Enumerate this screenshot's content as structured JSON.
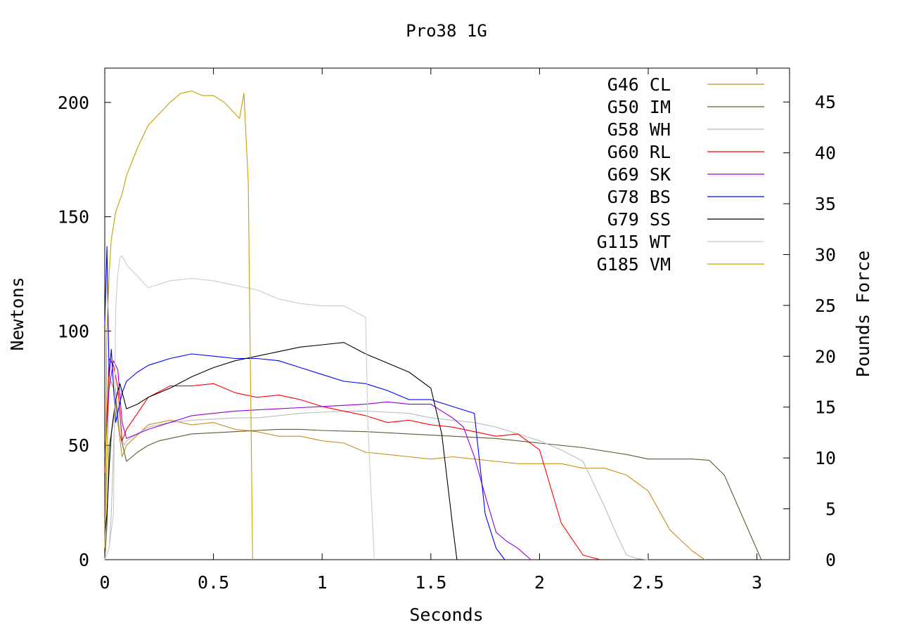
{
  "chart_data": {
    "type": "line",
    "title": "Pro38 1G",
    "xlabel": "Seconds",
    "ylabel": "Newtons",
    "y2label": "Pounds Force",
    "xlim": [
      0,
      3.15
    ],
    "ylim": [
      0,
      215
    ],
    "y2lim": [
      0,
      48.33
    ],
    "xticks": [
      "0",
      "0.5",
      "1",
      "1.5",
      "2",
      "2.5",
      "3"
    ],
    "yticks": [
      "0",
      "50",
      "100",
      "150",
      "200"
    ],
    "y2ticks": [
      "0",
      "5",
      "10",
      "15",
      "20",
      "25",
      "30",
      "35",
      "40",
      "45"
    ],
    "grid": false,
    "legend_position": "top-right",
    "series": [
      {
        "name": "G46 CL",
        "color": "#c8901c",
        "x": [
          0.0,
          0.02,
          0.04,
          0.06,
          0.08,
          0.1,
          0.2,
          0.3,
          0.4,
          0.5,
          0.6,
          0.7,
          0.8,
          0.9,
          1.0,
          1.1,
          1.2,
          1.3,
          1.4,
          1.5,
          1.6,
          1.7,
          1.8,
          1.9,
          2.0,
          2.1,
          2.2,
          2.3,
          2.4,
          2.5,
          2.6,
          2.7,
          2.76
        ],
        "y": [
          5,
          80,
          75,
          60,
          45,
          50,
          59,
          61,
          59,
          60,
          57,
          56,
          54,
          54,
          52,
          51,
          47,
          46,
          45,
          44,
          45,
          44,
          43,
          42,
          42,
          42,
          40,
          40,
          37,
          30,
          13,
          4,
          0
        ]
      },
      {
        "name": "G50 IM",
        "color": "#5e5a30",
        "x": [
          0.0,
          0.01,
          0.02,
          0.03,
          0.05,
          0.07,
          0.1,
          0.15,
          0.2,
          0.25,
          0.3,
          0.4,
          0.5,
          0.6,
          0.7,
          0.8,
          0.9,
          1.0,
          1.2,
          1.4,
          1.6,
          1.8,
          2.0,
          2.2,
          2.4,
          2.5,
          2.6,
          2.7,
          2.78,
          2.85,
          3.02
        ],
        "y": [
          0,
          15,
          50,
          55,
          70,
          55,
          43,
          47,
          50,
          52,
          53,
          55,
          55.5,
          56,
          56.5,
          57,
          57,
          56.5,
          56,
          55,
          54,
          53,
          51,
          49,
          46,
          44,
          44,
          44,
          43.5,
          37,
          0
        ]
      },
      {
        "name": "G58 WH",
        "color": "#bbbbbb",
        "x": [
          0.0,
          0.02,
          0.03,
          0.05,
          0.07,
          0.09,
          0.1,
          0.15,
          0.2,
          0.3,
          0.4,
          0.5,
          0.6,
          0.7,
          0.8,
          0.9,
          1.0,
          1.1,
          1.2,
          1.3,
          1.4,
          1.5,
          1.6,
          1.7,
          1.8,
          1.9,
          2.0,
          2.1,
          2.2,
          2.3,
          2.35,
          2.4,
          2.45,
          2.5
        ],
        "y": [
          0,
          5,
          20,
          75,
          55,
          50,
          52,
          55,
          58,
          60,
          61,
          61.5,
          62,
          62,
          63,
          64,
          64.5,
          65,
          65,
          64.5,
          64,
          62,
          61,
          60,
          58,
          55,
          52,
          48,
          43,
          23,
          12,
          2,
          0.5,
          0
        ]
      },
      {
        "name": "G60 RL",
        "color": "#ff0000",
        "x": [
          0.0,
          0.02,
          0.04,
          0.06,
          0.08,
          0.1,
          0.2,
          0.3,
          0.4,
          0.5,
          0.6,
          0.7,
          0.8,
          0.9,
          1.0,
          1.1,
          1.2,
          1.3,
          1.4,
          1.5,
          1.6,
          1.7,
          1.8,
          1.9,
          2.0,
          2.1,
          2.2,
          2.28
        ],
        "y": [
          38,
          88,
          85,
          75,
          52,
          57,
          71,
          76,
          76,
          77,
          73,
          71,
          72,
          70,
          67,
          65,
          63,
          60,
          61,
          59,
          58,
          56,
          54,
          55,
          48,
          16,
          2,
          0
        ]
      },
      {
        "name": "G69 SK",
        "color": "#9400d3",
        "x": [
          0.0,
          0.02,
          0.04,
          0.06,
          0.08,
          0.1,
          0.15,
          0.2,
          0.3,
          0.4,
          0.5,
          0.6,
          0.7,
          0.8,
          0.9,
          1.0,
          1.1,
          1.2,
          1.3,
          1.4,
          1.5,
          1.6,
          1.65,
          1.7,
          1.75,
          1.8,
          1.85,
          1.9,
          1.96
        ],
        "y": [
          45,
          75,
          87,
          83,
          60,
          53,
          55,
          57,
          60,
          63,
          64,
          65,
          65.5,
          66,
          66.5,
          67,
          67.5,
          68,
          69,
          68,
          68,
          62,
          58,
          45,
          28,
          12,
          8,
          5,
          0
        ]
      },
      {
        "name": "G78 BS",
        "color": "#0000ff",
        "x": [
          0.0,
          0.01,
          0.02,
          0.03,
          0.05,
          0.08,
          0.1,
          0.15,
          0.2,
          0.3,
          0.4,
          0.5,
          0.6,
          0.7,
          0.8,
          0.9,
          1.0,
          1.1,
          1.2,
          1.3,
          1.4,
          1.5,
          1.6,
          1.7,
          1.75,
          1.8,
          1.84
        ],
        "y": [
          103,
          137,
          80,
          92,
          60,
          73,
          78,
          82,
          85,
          88,
          90,
          89,
          88,
          88,
          87,
          84,
          81,
          78,
          77,
          74,
          70,
          70,
          67,
          64,
          20,
          5,
          0
        ]
      },
      {
        "name": "G79 SS",
        "color": "#000000",
        "x": [
          0.0,
          0.01,
          0.02,
          0.03,
          0.05,
          0.07,
          0.1,
          0.15,
          0.2,
          0.3,
          0.4,
          0.5,
          0.6,
          0.7,
          0.8,
          0.9,
          1.0,
          1.1,
          1.2,
          1.3,
          1.4,
          1.5,
          1.55,
          1.6,
          1.62
        ],
        "y": [
          10,
          20,
          40,
          55,
          70,
          77,
          66,
          68,
          71,
          75,
          80,
          84,
          87,
          89,
          91,
          93,
          94,
          95,
          90,
          86,
          82,
          75,
          55,
          15,
          0
        ]
      },
      {
        "name": "G115 WT",
        "color": "#cccccc",
        "x": [
          0.0,
          0.02,
          0.04,
          0.05,
          0.06,
          0.07,
          0.08,
          0.1,
          0.15,
          0.2,
          0.3,
          0.4,
          0.5,
          0.6,
          0.7,
          0.8,
          0.9,
          1.0,
          1.1,
          1.2,
          1.21,
          1.24
        ],
        "y": [
          0,
          5,
          20,
          110,
          125,
          132,
          133,
          129,
          124,
          119,
          122,
          123,
          122,
          120,
          118,
          114,
          112,
          111,
          111,
          106,
          60,
          0
        ]
      },
      {
        "name": "G185 VM",
        "color": "#c8a000",
        "x": [
          0.0,
          0.01,
          0.02,
          0.03,
          0.05,
          0.08,
          0.1,
          0.15,
          0.2,
          0.25,
          0.3,
          0.35,
          0.4,
          0.45,
          0.5,
          0.55,
          0.6,
          0.62,
          0.64,
          0.66,
          0.68
        ],
        "y": [
          5,
          100,
          125,
          140,
          152,
          160,
          168,
          180,
          190,
          195,
          200,
          204,
          205,
          203,
          203,
          200,
          195,
          193,
          204,
          165,
          0
        ]
      }
    ]
  }
}
